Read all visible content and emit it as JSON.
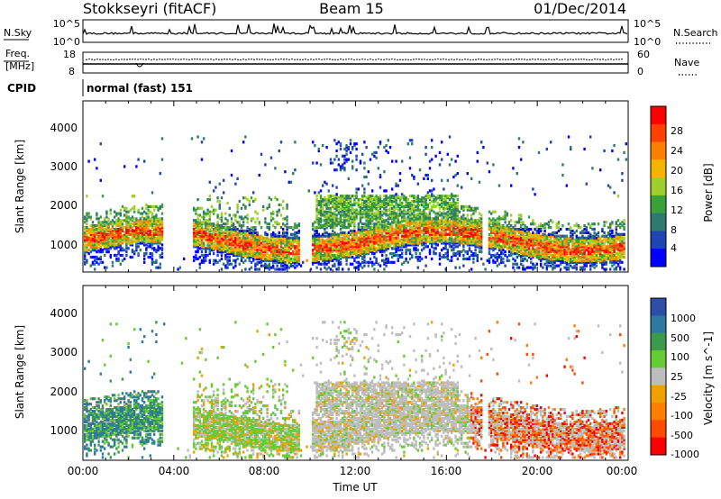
{
  "header": {
    "station": "Stokkseyri (fitACF)",
    "beam": "Beam 15",
    "date": "01/Dec/2014"
  },
  "noise_panel": {
    "left_label": "N.Sky",
    "right_label": "N.Search",
    "tick_top": "10^5",
    "tick_bottom": "10^0"
  },
  "freq_panel": {
    "left_label_1": "Freq.",
    "left_label_2": "[MHz]",
    "right_label": "Nave",
    "left_ticks": [
      "18",
      "8"
    ],
    "right_ticks": [
      "60",
      "0"
    ]
  },
  "cpid": {
    "label": "CPID",
    "value": "normal (fast) 151"
  },
  "colors": {
    "power_scale": [
      "#0000ff",
      "#1f45b5",
      "#2f7a6e",
      "#3aa03a",
      "#9fcf2a",
      "#f5b400",
      "#ff8000",
      "#ff4000",
      "#ff0000"
    ],
    "velocity_scale": [
      "#2d4ea6",
      "#2c7aa0",
      "#3c9a4a",
      "#66cc33",
      "#bdbdbd",
      "#f0a000",
      "#ff7d00",
      "#ff4a00",
      "#ff0000"
    ]
  },
  "chart_data": [
    {
      "type": "heatmap",
      "name": "power",
      "ylabel": "Slant Range [km]",
      "ylim": [
        180,
        4600
      ],
      "yticks": [
        "1000",
        "2000",
        "3000",
        "4000"
      ],
      "colorbar_label": "Power [dB]",
      "colorbar_ticks": [
        "4",
        "8",
        "12",
        "16",
        "20",
        "24",
        "28"
      ],
      "x_range_hours": [
        0,
        24
      ]
    },
    {
      "type": "heatmap",
      "name": "velocity",
      "ylabel": "Slant Range [km]",
      "ylim": [
        180,
        4600
      ],
      "yticks": [
        "1000",
        "2000",
        "3000",
        "4000"
      ],
      "colorbar_label": "Velocity [m s^-1]",
      "colorbar_ticks": [
        "1000",
        "500",
        "100",
        "25",
        "-25",
        "-100",
        "-500",
        "-1000"
      ],
      "x_range_hours": [
        0,
        24
      ]
    }
  ],
  "time_axis": {
    "label": "Time UT",
    "ticks": [
      "00:00",
      "04:00",
      "08:00",
      "12:00",
      "16:00",
      "20:00",
      "00:00"
    ]
  }
}
